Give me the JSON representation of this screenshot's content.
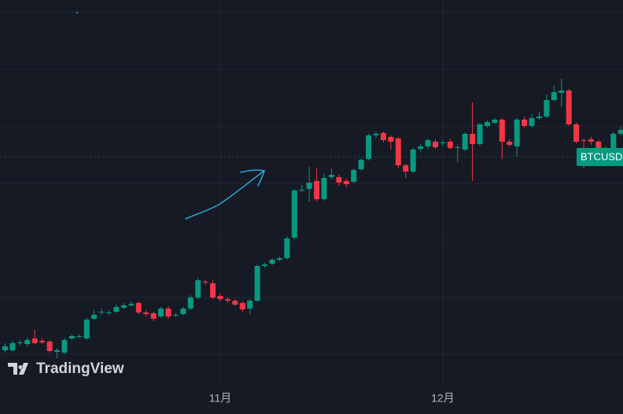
{
  "chart_data": {
    "type": "candlestick",
    "watermark": "TradingView",
    "categories": [
      null,
      null,
      null,
      null,
      null,
      null,
      null,
      null,
      null,
      null,
      null,
      null,
      null,
      null,
      null,
      null,
      null,
      null,
      null,
      null,
      null,
      null,
      null,
      null,
      null,
      null,
      null,
      null,
      null,
      "11月",
      null,
      null,
      null,
      null,
      null,
      null,
      null,
      null,
      null,
      null,
      null,
      null,
      null,
      null,
      null,
      null,
      null,
      null,
      null,
      null,
      null,
      null,
      null,
      null,
      null,
      null,
      null,
      null,
      null,
      "12月",
      null,
      null,
      null,
      null,
      null,
      null,
      null,
      null,
      null,
      null,
      null,
      null,
      null,
      null,
      null,
      null,
      null,
      null,
      null,
      null,
      null,
      null,
      null,
      null
    ],
    "series": [
      {
        "name": "BTCUSD",
        "open": [
          81,
          81,
          90,
          89,
          96,
          93,
          92,
          79,
          78,
          96,
          98,
          96,
          121,
          129,
          128,
          130,
          135,
          138,
          141,
          129,
          128,
          124,
          134,
          125,
          127,
          134,
          148,
          168,
          166,
          150,
          146,
          144,
          141,
          134,
          144,
          188,
          191,
          196,
          198,
          224,
          284,
          286,
          296,
          273,
          301,
          301,
          296,
          295,
          311,
          324,
          354,
          357,
          352,
          350,
          316,
          308,
          337,
          340,
          346,
          344,
          346,
          338,
          336,
          356,
          343,
          366,
          370,
          374,
          346,
          340,
          374,
          366,
          376,
          378,
          399,
          408,
          411,
          368,
          348,
          349,
          346,
          338,
          338,
          356
        ],
        "high": [
          90,
          93,
          94,
          97,
          107,
          96,
          94,
          84,
          97,
          101,
          101,
          122,
          132,
          134,
          132,
          139,
          141,
          143,
          143,
          132,
          130,
          136,
          137,
          128,
          136,
          151,
          173,
          171,
          170,
          153,
          148,
          146,
          143,
          146,
          190,
          192,
          198,
          200,
          226,
          286,
          291,
          314,
          312,
          305,
          312,
          304,
          299,
          312,
          325,
          356,
          359,
          359,
          354,
          352,
          318,
          338,
          343,
          350,
          349,
          348,
          350,
          342,
          358,
          396,
          370,
          373,
          376,
          376,
          349,
          376,
          378,
          381,
          384,
          406,
          417,
          426,
          413,
          370,
          350,
          352,
          348,
          340,
          358,
          365
        ],
        "low": [
          78,
          79,
          87,
          86,
          88,
          89,
          78,
          71,
          76,
          94,
          96,
          94,
          119,
          126,
          126,
          128,
          133,
          136,
          127,
          124,
          118,
          122,
          121,
          123,
          125,
          132,
          146,
          164,
          146,
          143,
          141,
          137,
          130,
          127,
          142,
          186,
          189,
          194,
          196,
          222,
          282,
          270,
          270,
          271,
          298,
          290,
          288,
          293,
          309,
          322,
          351,
          345,
          336,
          312,
          300,
          306,
          334,
          337,
          337,
          340,
          336,
          320,
          334,
          296,
          341,
          364,
          368,
          324,
          340,
          327,
          364,
          364,
          374,
          376,
          397,
          390,
          366,
          344,
          312,
          342,
          322,
          334,
          336,
          354
        ],
        "close": [
          86,
          90,
          91,
          94,
          90,
          91,
          80,
          81,
          94,
          99,
          99,
          120,
          126,
          130,
          129,
          136,
          138,
          140,
          129,
          127,
          121,
          134,
          124,
          126,
          134,
          148,
          170,
          167,
          148,
          146,
          144,
          139,
          133,
          144,
          188,
          190,
          196,
          198,
          223,
          284,
          285,
          294,
          273,
          300,
          304,
          294,
          292,
          310,
          323,
          354,
          356,
          348,
          346,
          316,
          308,
          336,
          340,
          348,
          339,
          345,
          338,
          339,
          356,
          343,
          368,
          371,
          374,
          346,
          342,
          374,
          366,
          376,
          378,
          399,
          409,
          411,
          368,
          346,
          347,
          346,
          338,
          336,
          356,
          361
        ]
      }
    ],
    "up_color": "#089981",
    "down_color": "#f23645",
    "ylim": [
      0,
      526
    ]
  }
}
